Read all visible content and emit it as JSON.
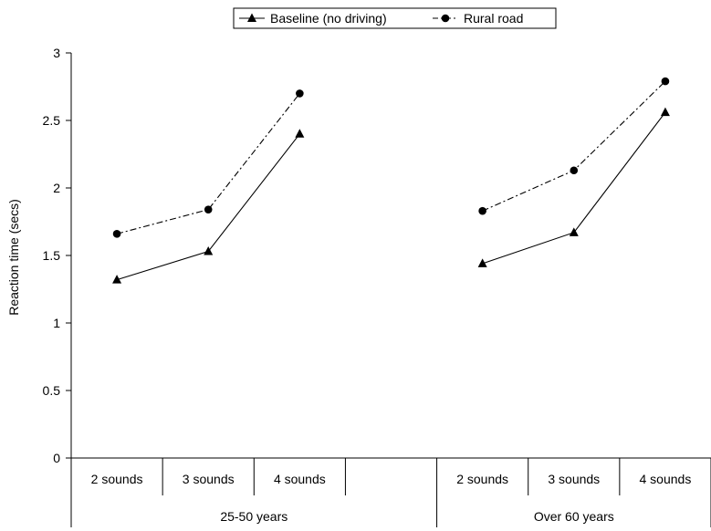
{
  "chart_data": {
    "type": "line",
    "ylabel": "Reaction time (secs)",
    "ylim": [
      0,
      3
    ],
    "yticks": [
      0,
      0.5,
      1,
      1.5,
      2,
      2.5,
      3
    ],
    "ytick_labels": [
      "0",
      "0.5",
      "1",
      "1.5",
      "2",
      "2.5",
      "3"
    ],
    "groups": [
      {
        "label": "25-50 years",
        "categories": [
          "2 sounds",
          "3 sounds",
          "4 sounds",
          ""
        ]
      },
      {
        "label": "Over 60 years",
        "categories": [
          "2 sounds",
          "3 sounds",
          "4 sounds"
        ]
      }
    ],
    "series": [
      {
        "name": "Baseline (no driving)",
        "marker": "triangle",
        "line_style": "solid",
        "values": [
          [
            1.32,
            1.53,
            2.4
          ],
          [
            1.44,
            1.67,
            2.56
          ]
        ]
      },
      {
        "name": "Rural road",
        "marker": "circle",
        "line_style": "dash-dot",
        "values": [
          [
            1.66,
            1.84,
            2.7
          ],
          [
            1.83,
            2.13,
            2.79
          ]
        ]
      }
    ],
    "legend_position": "top-center",
    "grid": false
  }
}
